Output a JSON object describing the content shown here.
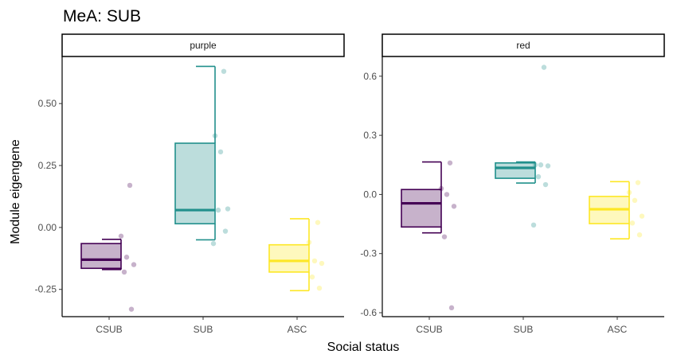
{
  "chart_data": {
    "type": "box",
    "title": "MeA: SUB",
    "xlabel": "Social status",
    "ylabel": "Module eigengene",
    "categories": [
      "CSUB",
      "SUB",
      "ASC"
    ],
    "colors": {
      "CSUB": "#440154",
      "SUB": "#21908c",
      "ASC": "#fde725"
    },
    "panels": [
      {
        "name": "purple",
        "ylim": [
          -0.36,
          0.69
        ],
        "yticks": [
          -0.25,
          0.0,
          0.25,
          0.5
        ],
        "ytick_labels": [
          "-0.25",
          "0.00",
          "0.25",
          "0.50"
        ],
        "boxes": [
          {
            "category": "CSUB",
            "min": -0.17,
            "q1": -0.165,
            "median": -0.13,
            "q3": -0.065,
            "max": -0.048
          },
          {
            "category": "SUB",
            "min": -0.05,
            "q1": 0.015,
            "median": 0.07,
            "q3": 0.34,
            "max": 0.65
          },
          {
            "category": "ASC",
            "min": -0.255,
            "q1": -0.18,
            "median": -0.135,
            "q3": -0.07,
            "max": 0.035
          }
        ],
        "points": [
          {
            "category": "CSUB",
            "values": [
              0.17,
              -0.035,
              -0.12,
              -0.15,
              -0.18,
              -0.33
            ]
          },
          {
            "category": "SUB",
            "values": [
              0.63,
              0.37,
              0.305,
              0.075,
              0.07,
              -0.015,
              -0.065
            ]
          },
          {
            "category": "ASC",
            "values": [
              0.02,
              -0.06,
              -0.135,
              -0.145,
              -0.2,
              -0.245
            ]
          }
        ]
      },
      {
        "name": "red",
        "ylim": [
          -0.62,
          0.7
        ],
        "yticks": [
          -0.6,
          -0.3,
          0.0,
          0.3,
          0.6
        ],
        "ytick_labels": [
          "-0.6",
          "-0.3",
          "0.0",
          "0.3",
          "0.6"
        ],
        "boxes": [
          {
            "category": "CSUB",
            "min": -0.195,
            "q1": -0.165,
            "median": -0.045,
            "q3": 0.025,
            "max": 0.165
          },
          {
            "category": "SUB",
            "min": 0.058,
            "q1": 0.082,
            "median": 0.135,
            "q3": 0.16,
            "max": 0.165
          },
          {
            "category": "ASC",
            "min": -0.225,
            "q1": -0.148,
            "median": -0.075,
            "q3": -0.01,
            "max": 0.065
          }
        ],
        "points": [
          {
            "category": "CSUB",
            "values": [
              0.16,
              0.03,
              0.0,
              -0.06,
              -0.215,
              -0.575
            ]
          },
          {
            "category": "SUB",
            "values": [
              0.645,
              0.15,
              0.15,
              0.145,
              0.09,
              0.05,
              -0.155
            ]
          },
          {
            "category": "ASC",
            "values": [
              0.06,
              0.01,
              -0.03,
              -0.11,
              -0.145,
              -0.205
            ]
          }
        ]
      }
    ]
  }
}
